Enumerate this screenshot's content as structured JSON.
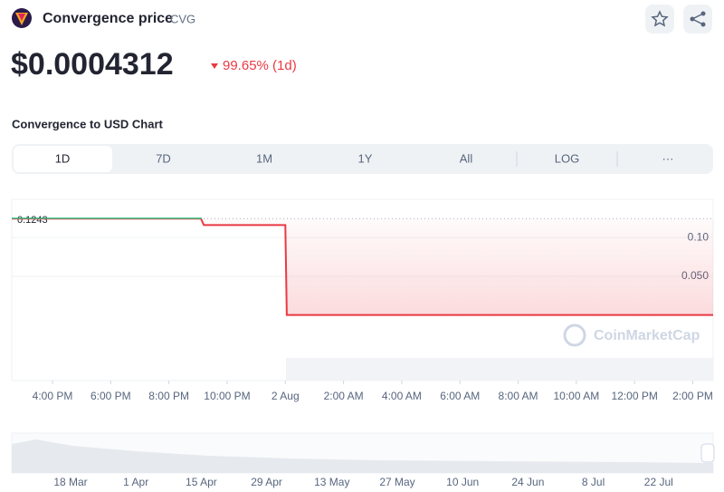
{
  "header": {
    "title": "Convergence price",
    "symbol": "CVG",
    "price": "$0.0004312",
    "change": "99.65% (1d)"
  },
  "section_title": "Convergence to USD Chart",
  "tabs": [
    "1D",
    "7D",
    "1M",
    "1Y",
    "All",
    "LOG",
    "···"
  ],
  "watermark": "CoinMarketCap",
  "chart_data": {
    "type": "line",
    "x": [
      14.6,
      21.1,
      21.2,
      24.0,
      24.05,
      38.7
    ],
    "values": [
      0.1243,
      0.1243,
      0.116,
      0.116,
      0.0004,
      0.0004
    ],
    "reference": 0.1243,
    "up_color": "#16c784",
    "down_color": "#ea3943",
    "xlim": [
      14.6,
      38.7
    ],
    "xticks": [
      {
        "value": 16,
        "label": "4:00 PM"
      },
      {
        "value": 18,
        "label": "6:00 PM"
      },
      {
        "value": 20,
        "label": "8:00 PM"
      },
      {
        "value": 22,
        "label": "10:00 PM"
      },
      {
        "value": 24,
        "label": "2 Aug"
      },
      {
        "value": 26,
        "label": "2:00 AM"
      },
      {
        "value": 28,
        "label": "4:00 AM"
      },
      {
        "value": 30,
        "label": "6:00 AM"
      },
      {
        "value": 32,
        "label": "8:00 AM"
      },
      {
        "value": 34,
        "label": "10:00 AM"
      },
      {
        "value": 36,
        "label": "12:00 PM"
      },
      {
        "value": 38,
        "label": "2:00 PM"
      }
    ],
    "ylim": [
      0,
      0.149
    ],
    "yticks": [
      {
        "value": 0.1,
        "label": "0.10"
      },
      {
        "value": 0.05,
        "label": "0.050"
      }
    ],
    "grid": true
  },
  "navigator": {
    "labels": [
      "18 Mar",
      "1 Apr",
      "15 Apr",
      "29 Apr",
      "13 May",
      "27 May",
      "10 Jun",
      "24 Jun",
      "8 Jul",
      "22 Jul"
    ]
  }
}
